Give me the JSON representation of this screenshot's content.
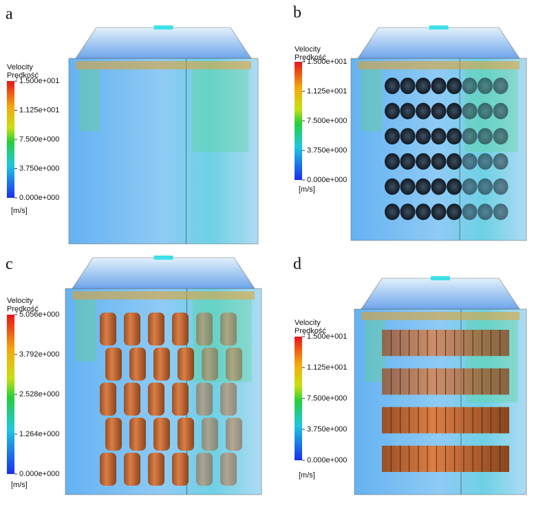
{
  "panels": [
    {
      "label": "a",
      "legend": {
        "title": "Velocity",
        "subtitle": "Prędkość",
        "ticks": [
          "1.500e+001",
          "1.125e+001",
          "7.500e+000",
          "3.750e+000",
          "0.000e+000"
        ],
        "unit": "[m/s]"
      }
    },
    {
      "label": "b",
      "legend": {
        "title": "Velocity",
        "subtitle": "Prędkość",
        "ticks": [
          "1.500e+001",
          "1.125e+001",
          "7.500e+000",
          "3.750e+000",
          "0.000e+000"
        ],
        "unit": "[m/s]"
      }
    },
    {
      "label": "c",
      "legend": {
        "title": "Velocity",
        "subtitle": "Prędkość",
        "ticks": [
          "5.056e+000",
          "3.792e+000",
          "2.528e+000",
          "1.264e+000",
          "0.000e+000"
        ],
        "unit": "[m/s]"
      }
    },
    {
      "label": "d",
      "legend": {
        "title": "Velocity",
        "subtitle": "Prędkość",
        "ticks": [
          "1.500e+001",
          "1.125e+001",
          "7.500e+000",
          "3.750e+000",
          "0.000e+000"
        ],
        "unit": "[m/s]"
      }
    }
  ]
}
